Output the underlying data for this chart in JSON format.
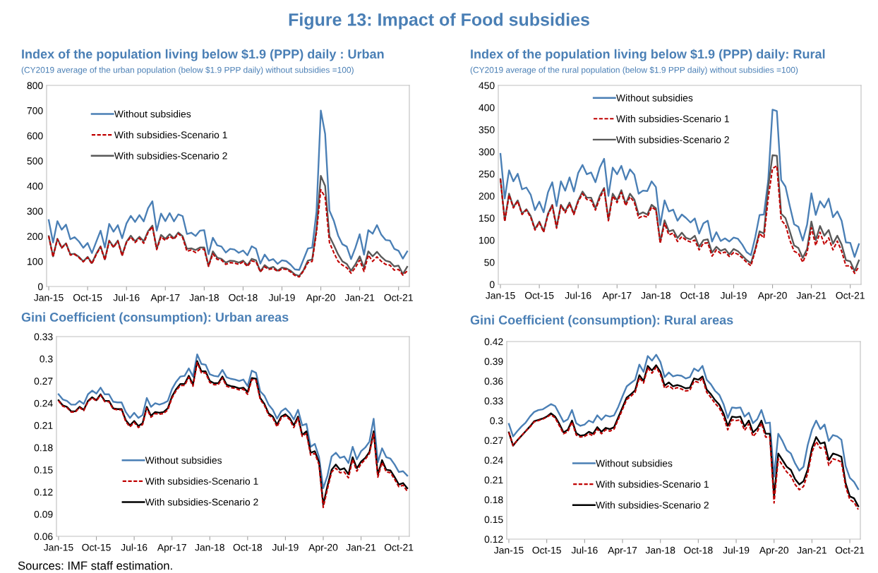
{
  "chart_data": [
    {
      "type": "line",
      "title": "Index of the population living below $1.9 (PPP) daily : Urban",
      "subtitle": "(CY2019 average of the urban population (below $1.9 PPP daily) without subsidies =100)",
      "categories": [
        "Jan-15",
        null,
        null,
        null,
        null,
        null,
        null,
        null,
        null,
        "Oct-15",
        null,
        null,
        null,
        null,
        null,
        null,
        null,
        null,
        "Jul-16",
        null,
        null,
        null,
        null,
        null,
        null,
        null,
        null,
        "Apr-17",
        null,
        null,
        null,
        null,
        null,
        null,
        null,
        null,
        "Jan-18",
        null,
        null,
        null,
        null,
        null,
        null,
        null,
        null,
        "Oct-18",
        null,
        null,
        null,
        null,
        null,
        null,
        null,
        null,
        "Jul-19",
        null,
        null,
        null,
        null,
        null,
        null,
        null,
        null,
        "Apr-20",
        null,
        null,
        null,
        null,
        null,
        null,
        null,
        null,
        "Jan-21",
        null,
        null,
        null,
        null,
        null,
        null,
        null,
        null,
        "Oct-21",
        null,
        null
      ],
      "series": [
        {
          "name": "Without subsidies",
          "color": "#4a7fb5",
          "line_style": "solid",
          "values": [
            264,
            175,
            260,
            226,
            246,
            188,
            196,
            179,
            154,
            173,
            133,
            178,
            222,
            155,
            249,
            218,
            244,
            192,
            251,
            281,
            257,
            284,
            259,
            311,
            339,
            222,
            290,
            260,
            292,
            259,
            287,
            280,
            209,
            214,
            201,
            222,
            224,
            128,
            194,
            164,
            159,
            135,
            150,
            147,
            134,
            143,
            124,
            160,
            150,
            91,
            127,
            103,
            109,
            90,
            104,
            101,
            87,
            68,
            66,
            108,
            151,
            155,
            298,
            700,
            607,
            302,
            262,
            203,
            168,
            159,
            109,
            154,
            208,
            127,
            224,
            210,
            244,
            206,
            185,
            183,
            150,
            142,
            111,
            139
          ]
        },
        {
          "name": "With subsidies-Scenario 1",
          "color": "#c00000",
          "line_style": "dashed",
          "values": [
            200,
            118,
            188,
            153,
            170,
            125,
            128,
            115,
            98,
            115,
            90,
            127,
            157,
            105,
            180,
            155,
            180,
            122,
            175,
            197,
            175,
            192,
            172,
            215,
            238,
            147,
            198,
            183,
            200,
            188,
            210,
            195,
            140,
            145,
            135,
            148,
            148,
            80,
            130,
            108,
            105,
            88,
            95,
            93,
            88,
            98,
            80,
            102,
            98,
            58,
            78,
            68,
            72,
            60,
            70,
            68,
            58,
            44,
            38,
            62,
            95,
            100,
            215,
            385,
            355,
            175,
            135,
            100,
            85,
            75,
            53,
            75,
            105,
            60,
            125,
            100,
            118,
            100,
            88,
            85,
            65,
            68,
            45,
            62
          ]
        },
        {
          "name": "With subsidies-Scenario 2",
          "color": "#595959",
          "line_style": "solid",
          "values": [
            200,
            120,
            190,
            155,
            172,
            128,
            130,
            118,
            100,
            118,
            93,
            130,
            160,
            108,
            183,
            158,
            183,
            125,
            178,
            202,
            180,
            198,
            180,
            220,
            242,
            150,
            205,
            190,
            208,
            192,
            215,
            200,
            150,
            152,
            145,
            155,
            155,
            82,
            140,
            115,
            110,
            95,
            103,
            101,
            95,
            103,
            85,
            110,
            104,
            60,
            85,
            72,
            78,
            63,
            75,
            72,
            63,
            48,
            42,
            65,
            103,
            108,
            230,
            440,
            400,
            200,
            165,
            128,
            100,
            90,
            63,
            88,
            120,
            75,
            140,
            120,
            138,
            118,
            103,
            98,
            80,
            83,
            50,
            78
          ]
        }
      ],
      "ylim": [
        0,
        800
      ],
      "yticks": [
        0,
        100,
        200,
        300,
        400,
        500,
        600,
        700,
        800
      ],
      "legend": "top left",
      "annotations": [
        "Figure 13: Impact of Food subsidies"
      ]
    },
    {
      "type": "line",
      "title": "Index of the population living below $1.9 (PPP) daily: Rural",
      "subtitle": "(CY2019 average of the rural population (below $1.9 PPP daily) without subsidies =100)",
      "categories": [
        "Jan-15",
        null,
        null,
        null,
        null,
        null,
        null,
        null,
        null,
        "Oct-15",
        null,
        null,
        null,
        null,
        null,
        null,
        null,
        null,
        "Jul-16",
        null,
        null,
        null,
        null,
        null,
        null,
        null,
        null,
        "Apr-17",
        null,
        null,
        null,
        null,
        null,
        null,
        null,
        null,
        "Jan-18",
        null,
        null,
        null,
        null,
        null,
        null,
        null,
        null,
        "Oct-18",
        null,
        null,
        null,
        null,
        null,
        null,
        null,
        null,
        "Jul-19",
        null,
        null,
        null,
        null,
        null,
        null,
        null,
        null,
        "Apr-20",
        null,
        null,
        null,
        null,
        null,
        null,
        null,
        null,
        "Jan-21",
        null,
        null,
        null,
        null,
        null,
        null,
        null,
        null,
        "Oct-21",
        null,
        null
      ],
      "series": [
        {
          "name": "Without subsidies",
          "color": "#4a7fb5",
          "line_style": "solid",
          "values": [
            295,
            194,
            258,
            233,
            250,
            215,
            219,
            203,
            168,
            187,
            163,
            208,
            231,
            177,
            233,
            212,
            242,
            210,
            252,
            270,
            249,
            253,
            231,
            264,
            284,
            200,
            264,
            249,
            268,
            237,
            260,
            248,
            205,
            212,
            211,
            233,
            220,
            134,
            190,
            165,
            169,
            144,
            158,
            150,
            140,
            149,
            115,
            138,
            144,
            97,
            118,
            98,
            104,
            97,
            106,
            103,
            90,
            73,
            66,
            107,
            157,
            158,
            235,
            395,
            392,
            236,
            221,
            177,
            136,
            130,
            99,
            135,
            206,
            157,
            188,
            174,
            194,
            152,
            165,
            144,
            95,
            94,
            62,
            91
          ]
        },
        {
          "name": "With subsidies-Scenario 1",
          "color": "#c00000",
          "line_style": "dashed",
          "values": [
            238,
            142,
            202,
            173,
            188,
            158,
            168,
            152,
            123,
            140,
            118,
            157,
            178,
            127,
            178,
            162,
            182,
            158,
            187,
            205,
            192,
            190,
            168,
            195,
            215,
            144,
            200,
            185,
            208,
            178,
            198,
            186,
            150,
            155,
            152,
            175,
            168,
            93,
            138,
            112,
            116,
            97,
            108,
            100,
            96,
            100,
            78,
            93,
            94,
            64,
            78,
            70,
            73,
            63,
            72,
            68,
            60,
            50,
            42,
            76,
            115,
            105,
            195,
            262,
            268,
            145,
            135,
            100,
            75,
            70,
            50,
            72,
            128,
            88,
            118,
            90,
            105,
            78,
            98,
            75,
            42,
            42,
            25,
            40
          ]
        },
        {
          "name": "With subsidies-Scenario 2",
          "color": "#595959",
          "line_style": "solid",
          "values": [
            238,
            145,
            205,
            175,
            190,
            160,
            170,
            155,
            125,
            142,
            120,
            160,
            180,
            130,
            180,
            165,
            185,
            160,
            190,
            210,
            196,
            196,
            172,
            200,
            218,
            147,
            205,
            190,
            213,
            182,
            205,
            192,
            158,
            163,
            158,
            180,
            172,
            96,
            145,
            120,
            123,
            105,
            117,
            105,
            102,
            110,
            85,
            100,
            102,
            72,
            85,
            76,
            80,
            68,
            80,
            75,
            65,
            55,
            48,
            80,
            120,
            115,
            220,
            292,
            291,
            160,
            150,
            120,
            88,
            82,
            60,
            80,
            142,
            100,
            132,
            110,
            123,
            92,
            110,
            90,
            55,
            52,
            30,
            54
          ]
        }
      ],
      "ylim": [
        0,
        450
      ],
      "yticks": [
        0,
        50,
        100,
        150,
        200,
        250,
        300,
        350,
        400,
        450
      ],
      "legend": "top"
    },
    {
      "type": "line",
      "title": "Gini Coefficient (consumption): Urban areas",
      "categories": [
        "Jan-15",
        null,
        null,
        null,
        null,
        null,
        null,
        null,
        null,
        "Oct-15",
        null,
        null,
        null,
        null,
        null,
        null,
        null,
        null,
        "Jul-16",
        null,
        null,
        null,
        null,
        null,
        null,
        null,
        null,
        "Apr-17",
        null,
        null,
        null,
        null,
        null,
        null,
        null,
        null,
        "Jan-18",
        null,
        null,
        null,
        null,
        null,
        null,
        null,
        null,
        "Oct-18",
        null,
        null,
        null,
        null,
        null,
        null,
        null,
        null,
        "Jul-19",
        null,
        null,
        null,
        null,
        null,
        null,
        null,
        null,
        "Apr-20",
        null,
        null,
        null,
        null,
        null,
        null,
        null,
        null,
        "Jan-21",
        null,
        null,
        null,
        null,
        null,
        null,
        null,
        null,
        "Oct-21",
        null,
        null
      ],
      "series": [
        {
          "name": "Without subsidies",
          "color": "#4a7fb5",
          "line_style": "solid",
          "values": [
            0.252,
            0.245,
            0.243,
            0.238,
            0.238,
            0.243,
            0.239,
            0.252,
            0.257,
            0.253,
            0.261,
            0.252,
            0.252,
            0.242,
            0.241,
            0.241,
            0.228,
            0.22,
            0.227,
            0.22,
            0.224,
            0.247,
            0.235,
            0.24,
            0.238,
            0.24,
            0.243,
            0.259,
            0.269,
            0.276,
            0.277,
            0.287,
            0.276,
            0.306,
            0.293,
            0.292,
            0.279,
            0.277,
            0.276,
            0.285,
            0.275,
            0.273,
            0.272,
            0.27,
            0.272,
            0.263,
            0.284,
            0.281,
            0.256,
            0.25,
            0.238,
            0.231,
            0.219,
            0.229,
            0.233,
            0.227,
            0.218,
            0.231,
            0.21,
            0.212,
            0.181,
            0.185,
            0.167,
            0.125,
            0.142,
            0.168,
            0.173,
            0.166,
            0.168,
            0.159,
            0.181,
            0.164,
            0.175,
            0.18,
            0.188,
            0.219,
            0.16,
            0.179,
            0.167,
            0.165,
            0.157,
            0.147,
            0.148,
            0.142
          ]
        },
        {
          "name": "With subsidies-Scenario 1",
          "color": "#c00000",
          "line_style": "dashed",
          "values": [
            0.243,
            0.236,
            0.234,
            0.228,
            0.228,
            0.234,
            0.23,
            0.242,
            0.247,
            0.243,
            0.251,
            0.242,
            0.242,
            0.232,
            0.231,
            0.231,
            0.215,
            0.208,
            0.214,
            0.207,
            0.211,
            0.233,
            0.221,
            0.226,
            0.225,
            0.226,
            0.231,
            0.247,
            0.257,
            0.264,
            0.264,
            0.275,
            0.263,
            0.295,
            0.281,
            0.281,
            0.268,
            0.265,
            0.265,
            0.274,
            0.263,
            0.261,
            0.26,
            0.258,
            0.259,
            0.252,
            0.272,
            0.271,
            0.245,
            0.237,
            0.224,
            0.22,
            0.208,
            0.22,
            0.223,
            0.218,
            0.207,
            0.22,
            0.195,
            0.199,
            0.17,
            0.172,
            0.157,
            0.099,
            0.124,
            0.147,
            0.152,
            0.146,
            0.147,
            0.139,
            0.164,
            0.148,
            0.158,
            0.164,
            0.172,
            0.199,
            0.14,
            0.16,
            0.147,
            0.146,
            0.137,
            0.127,
            0.129,
            0.121
          ]
        },
        {
          "name": "With subsidies-Scenario 2",
          "color": "#000000",
          "line_style": "solid",
          "values": [
            0.244,
            0.237,
            0.235,
            0.229,
            0.229,
            0.235,
            0.231,
            0.243,
            0.248,
            0.244,
            0.252,
            0.243,
            0.243,
            0.233,
            0.232,
            0.232,
            0.217,
            0.21,
            0.216,
            0.209,
            0.213,
            0.235,
            0.223,
            0.228,
            0.227,
            0.228,
            0.233,
            0.249,
            0.259,
            0.266,
            0.266,
            0.277,
            0.265,
            0.297,
            0.283,
            0.283,
            0.27,
            0.267,
            0.267,
            0.276,
            0.265,
            0.263,
            0.262,
            0.26,
            0.261,
            0.255,
            0.274,
            0.273,
            0.247,
            0.239,
            0.226,
            0.222,
            0.211,
            0.222,
            0.225,
            0.22,
            0.21,
            0.222,
            0.197,
            0.202,
            0.173,
            0.175,
            0.16,
            0.103,
            0.128,
            0.15,
            0.157,
            0.15,
            0.152,
            0.144,
            0.167,
            0.152,
            0.161,
            0.166,
            0.174,
            0.202,
            0.143,
            0.163,
            0.15,
            0.149,
            0.14,
            0.13,
            0.132,
            0.125
          ]
        }
      ],
      "ylim": [
        0.06,
        0.33
      ],
      "yticks": [
        0.06,
        0.09,
        0.12,
        0.15,
        0.18,
        0.21,
        0.24,
        0.27,
        0.3,
        0.33
      ],
      "legend": "bottom",
      "annotations": [
        "Sources: IMF staff estimation."
      ]
    },
    {
      "type": "line",
      "title": "Gini Coefficient (consumption): Rural areas",
      "categories": [
        "Jan-15",
        null,
        null,
        null,
        null,
        null,
        null,
        null,
        null,
        "Oct-15",
        null,
        null,
        null,
        null,
        null,
        null,
        null,
        null,
        "Jul-16",
        null,
        null,
        null,
        null,
        null,
        null,
        null,
        null,
        "Apr-17",
        null,
        null,
        null,
        null,
        null,
        null,
        null,
        null,
        "Jan-18",
        null,
        null,
        null,
        null,
        null,
        null,
        null,
        null,
        "Oct-18",
        null,
        null,
        null,
        null,
        null,
        null,
        null,
        null,
        "Jul-19",
        null,
        null,
        null,
        null,
        null,
        null,
        null,
        null,
        "Apr-20",
        null,
        null,
        null,
        null,
        null,
        null,
        null,
        null,
        "Jan-21",
        null,
        null,
        null,
        null,
        null,
        null,
        null,
        null,
        "Oct-21",
        null,
        null
      ],
      "series": [
        {
          "name": "Without subsidies",
          "color": "#4a7fb5",
          "line_style": "solid",
          "values": [
            0.295,
            0.276,
            0.284,
            0.291,
            0.297,
            0.306,
            0.313,
            0.316,
            0.317,
            0.321,
            0.325,
            0.322,
            0.31,
            0.298,
            0.302,
            0.316,
            0.296,
            0.292,
            0.294,
            0.3,
            0.297,
            0.308,
            0.301,
            0.308,
            0.306,
            0.308,
            0.321,
            0.337,
            0.352,
            0.357,
            0.362,
            0.385,
            0.374,
            0.398,
            0.391,
            0.4,
            0.389,
            0.366,
            0.373,
            0.367,
            0.369,
            0.368,
            0.364,
            0.366,
            0.379,
            0.375,
            0.383,
            0.362,
            0.355,
            0.345,
            0.339,
            0.325,
            0.304,
            0.32,
            0.319,
            0.32,
            0.306,
            0.312,
            0.296,
            0.302,
            0.316,
            0.296,
            0.297,
            0.215,
            0.28,
            0.269,
            0.255,
            0.25,
            0.235,
            0.224,
            0.23,
            0.263,
            0.286,
            0.3,
            0.287,
            0.294,
            0.269,
            0.278,
            0.276,
            0.271,
            0.231,
            0.213,
            0.207,
            0.196
          ]
        },
        {
          "name": "With subsidies-Scenario 1",
          "color": "#c00000",
          "line_style": "dashed",
          "values": [
            0.282,
            0.262,
            0.27,
            0.277,
            0.284,
            0.29,
            0.298,
            0.3,
            0.302,
            0.305,
            0.309,
            0.304,
            0.292,
            0.28,
            0.283,
            0.298,
            0.278,
            0.275,
            0.276,
            0.28,
            0.277,
            0.287,
            0.28,
            0.286,
            0.284,
            0.287,
            0.302,
            0.317,
            0.332,
            0.337,
            0.343,
            0.365,
            0.357,
            0.38,
            0.372,
            0.381,
            0.37,
            0.349,
            0.353,
            0.348,
            0.35,
            0.348,
            0.345,
            0.346,
            0.36,
            0.358,
            0.364,
            0.343,
            0.335,
            0.326,
            0.319,
            0.306,
            0.286,
            0.301,
            0.3,
            0.301,
            0.285,
            0.295,
            0.276,
            0.283,
            0.296,
            0.275,
            0.275,
            0.175,
            0.242,
            0.232,
            0.222,
            0.216,
            0.203,
            0.195,
            0.2,
            0.22,
            0.252,
            0.268,
            0.258,
            0.26,
            0.232,
            0.242,
            0.24,
            0.237,
            0.2,
            0.18,
            0.176,
            0.165
          ]
        },
        {
          "name": "With subsidies-Scenario 2",
          "color": "#000000",
          "line_style": "solid",
          "values": [
            0.282,
            0.262,
            0.27,
            0.277,
            0.284,
            0.291,
            0.299,
            0.301,
            0.303,
            0.306,
            0.311,
            0.306,
            0.295,
            0.282,
            0.286,
            0.3,
            0.281,
            0.277,
            0.278,
            0.283,
            0.28,
            0.29,
            0.283,
            0.289,
            0.287,
            0.29,
            0.305,
            0.32,
            0.335,
            0.34,
            0.346,
            0.369,
            0.36,
            0.383,
            0.376,
            0.384,
            0.374,
            0.353,
            0.358,
            0.352,
            0.354,
            0.352,
            0.349,
            0.35,
            0.364,
            0.362,
            0.367,
            0.347,
            0.34,
            0.331,
            0.324,
            0.311,
            0.292,
            0.306,
            0.305,
            0.306,
            0.291,
            0.3,
            0.282,
            0.288,
            0.3,
            0.28,
            0.28,
            0.185,
            0.25,
            0.24,
            0.23,
            0.225,
            0.211,
            0.203,
            0.208,
            0.226,
            0.258,
            0.275,
            0.265,
            0.267,
            0.24,
            0.25,
            0.248,
            0.245,
            0.205,
            0.185,
            0.182,
            0.17
          ]
        }
      ],
      "ylim": [
        0.12,
        0.42
      ],
      "yticks": [
        0.12,
        0.15,
        0.18,
        0.21,
        0.24,
        0.27,
        0.3,
        0.33,
        0.36,
        0.39,
        0.42
      ],
      "legend": "bottom"
    }
  ]
}
